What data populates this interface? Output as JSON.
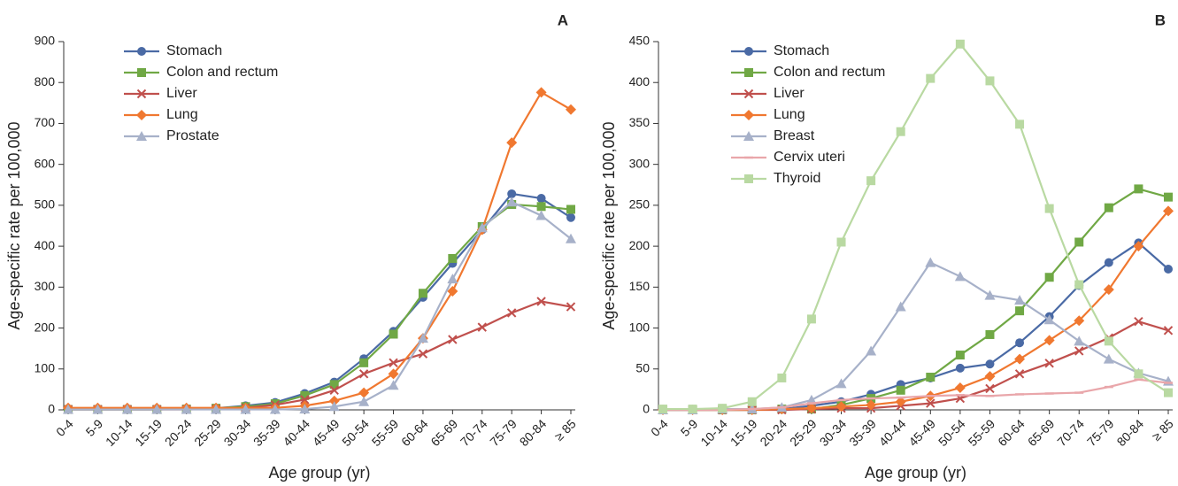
{
  "chart_data": [
    {
      "type": "line",
      "panel_label": "A",
      "x_label": "Age group (yr)",
      "y_label": "Age-specific rate per 100,000",
      "categories": [
        "0-4",
        "5-9",
        "10-14",
        "15-19",
        "20-24",
        "25-29",
        "30-34",
        "35-39",
        "40-44",
        "45-49",
        "50-54",
        "55-59",
        "60-64",
        "65-69",
        "70-74",
        "75-79",
        "80-84",
        "≥ 85"
      ],
      "ylim": [
        0,
        900
      ],
      "yticks": [
        0,
        100,
        200,
        300,
        400,
        500,
        600,
        700,
        800,
        900
      ],
      "series": [
        {
          "name": "Stomach",
          "color": "#4a6aa5",
          "marker": "circle",
          "values": [
            1,
            1,
            1,
            1,
            2,
            4,
            10,
            18,
            40,
            68,
            125,
            192,
            275,
            358,
            440,
            528,
            517,
            470
          ]
        },
        {
          "name": "Colon and rectum",
          "color": "#70a845",
          "marker": "square",
          "values": [
            1,
            1,
            1,
            1,
            2,
            4,
            8,
            15,
            35,
            62,
            115,
            185,
            285,
            370,
            448,
            502,
            497,
            490
          ]
        },
        {
          "name": "Liver",
          "color": "#c0504d",
          "marker": "x",
          "values": [
            1,
            1,
            1,
            1,
            1,
            2,
            5,
            12,
            25,
            48,
            88,
            115,
            137,
            172,
            202,
            237,
            265,
            252
          ]
        },
        {
          "name": "Lung",
          "color": "#f07830",
          "marker": "diamond",
          "values": [
            5,
            5,
            5,
            5,
            5,
            5,
            5,
            5,
            10,
            22,
            42,
            88,
            175,
            290,
            440,
            653,
            776,
            734
          ]
        },
        {
          "name": "Prostate",
          "color": "#a7b1c9",
          "marker": "triangle",
          "values": [
            1,
            1,
            1,
            1,
            1,
            1,
            1,
            1,
            2,
            8,
            20,
            60,
            175,
            320,
            445,
            508,
            475,
            418
          ]
        }
      ]
    },
    {
      "type": "line",
      "panel_label": "B",
      "x_label": "Age group (yr)",
      "y_label": "Age-specific rate per 100,000",
      "categories": [
        "0-4",
        "5-9",
        "10-14",
        "15-19",
        "20-24",
        "25-29",
        "30-34",
        "35-39",
        "40-44",
        "45-49",
        "50-54",
        "55-59",
        "60-64",
        "65-69",
        "70-74",
        "75-79",
        "80-84",
        "≥ 85"
      ],
      "ylim": [
        0,
        450
      ],
      "yticks": [
        0,
        50,
        100,
        150,
        200,
        250,
        300,
        350,
        400,
        450
      ],
      "series": [
        {
          "name": "Stomach",
          "color": "#4a6aa5",
          "marker": "circle",
          "values": [
            0,
            0,
            0,
            0,
            1,
            5,
            10,
            19,
            31,
            39,
            51,
            56,
            82,
            114,
            152,
            180,
            204,
            172
          ]
        },
        {
          "name": "Colon and rectum",
          "color": "#70a845",
          "marker": "square",
          "values": [
            0,
            0,
            0,
            0,
            1,
            1,
            6,
            14,
            24,
            40,
            67,
            92,
            121,
            162,
            205,
            247,
            270,
            260
          ]
        },
        {
          "name": "Liver",
          "color": "#c0504d",
          "marker": "x",
          "values": [
            0,
            0,
            0,
            0,
            0,
            1,
            2,
            2,
            5,
            8,
            14,
            26,
            44,
            57,
            72,
            88,
            108,
            97
          ]
        },
        {
          "name": "Lung",
          "color": "#f07830",
          "marker": "diamond",
          "values": [
            0,
            0,
            0,
            0,
            1,
            2,
            4,
            6,
            10,
            17,
            27,
            41,
            62,
            85,
            109,
            147,
            200,
            243
          ]
        },
        {
          "name": "Breast",
          "color": "#a7b1c9",
          "marker": "triangle",
          "values": [
            0,
            0,
            1,
            1,
            3,
            12,
            32,
            72,
            126,
            180,
            163,
            140,
            134,
            110,
            84,
            62,
            45,
            35
          ]
        },
        {
          "name": "Cervix uteri",
          "color": "#e9a6aa",
          "marker": "dash",
          "values": [
            0,
            0,
            0,
            1,
            3,
            8,
            12,
            14,
            15,
            17,
            18,
            17,
            19,
            20,
            21,
            28,
            37,
            33
          ]
        },
        {
          "name": "Thyroid",
          "color": "#b9d9a2",
          "marker": "square",
          "values": [
            1,
            1,
            2,
            10,
            39,
            111,
            205,
            280,
            340,
            405,
            447,
            402,
            349,
            246,
            153,
            84,
            44,
            21
          ]
        }
      ]
    }
  ]
}
